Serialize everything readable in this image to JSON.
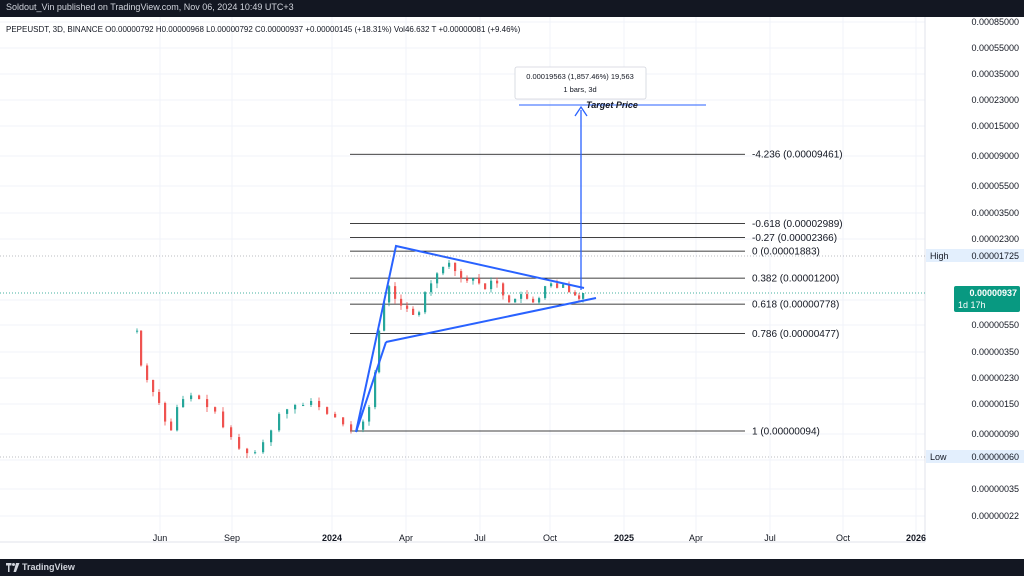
{
  "header": {
    "publisher": "Soldout_Vin published on TradingView.com, Nov 06, 2024 10:49 UTC+3"
  },
  "footer": {
    "brand": "TradingView"
  },
  "legend": {
    "symbol": "PEPEUSDT, 3D, BINANCE",
    "ohlc": "O0.00000792 H0.00000968 L0.00000792 C0.00000937 +0.00000145 (+18.31%) Vol46.632 T +0.00000081 (+9.46%)"
  },
  "colors": {
    "up": "#26a69a",
    "down": "#ef5350",
    "drawing": "#2962ff",
    "fib_line": "#000000",
    "price_tag": "#089981",
    "axis_text": "#131722"
  },
  "chart_data": {
    "type": "candlestick",
    "x_axis_labels": [
      "Jun",
      "Sep",
      "2024",
      "Apr",
      "Jul",
      "Oct",
      "2025",
      "Apr",
      "Jul",
      "Oct",
      "2026"
    ],
    "y_axis_labels": [
      "0.00085000",
      "0.00055000",
      "0.00035000",
      "0.00023000",
      "0.00015000",
      "0.00009000",
      "0.00005500",
      "0.00003500",
      "0.00002300",
      "0.00000550",
      "0.00000350",
      "0.00000230",
      "0.00000150",
      "0.00000090",
      "0.00000035",
      "0.00000022"
    ],
    "y_scale": "log",
    "last_price": {
      "value": "0.00000937",
      "countdown": "1d 17h"
    },
    "high_marker": {
      "label": "High",
      "value": "0.00001725"
    },
    "low_marker": {
      "label": "Low",
      "value": "0.00000060"
    },
    "fib_levels": [
      {
        "label": "-4.236 (0.00009461)",
        "value": 9.461e-05
      },
      {
        "label": "-0.618 (0.00002989)",
        "value": 2.989e-05
      },
      {
        "label": "-0.27 (0.00002366)",
        "value": 2.366e-05
      },
      {
        "label": "0 (0.00001883)",
        "value": 1.883e-05
      },
      {
        "label": "0.382 (0.00001200)",
        "value": 1.2e-05
      },
      {
        "label": "0.618 (0.00000778)",
        "value": 7.78e-06
      },
      {
        "label": "0.786 (0.00000477)",
        "value": 4.77e-06
      },
      {
        "label": "1 (0.00000094)",
        "value": 9.4e-07
      }
    ],
    "projection": {
      "measure_line1": "0.00019563 (1,857.46%) 19,563",
      "measure_line2": "1 bars, 3d",
      "target_label": "Target Price"
    }
  }
}
